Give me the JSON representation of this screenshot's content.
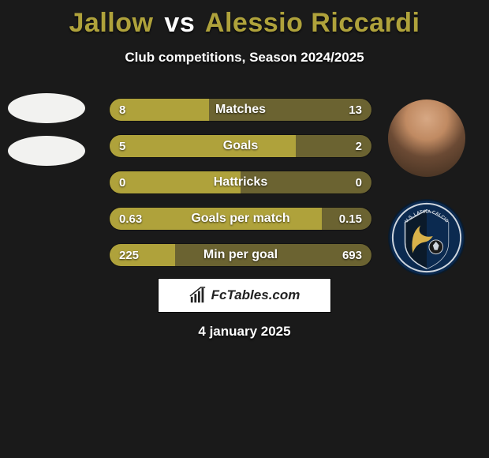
{
  "title": {
    "player1": "Jallow",
    "vs": "vs",
    "player2": "Alessio Riccardi",
    "player1_color": "#afa23b",
    "player2_color": "#afa23b",
    "vs_color": "#ffffff"
  },
  "subtitle": "Club competitions, Season 2024/2025",
  "colors": {
    "left": "#afa23b",
    "right": "#6b6331",
    "background": "#1a1a1a",
    "text": "#ffffff"
  },
  "bars": [
    {
      "label": "Matches",
      "left_val": "8",
      "right_val": "13",
      "left_pct": 38,
      "right_pct": 62
    },
    {
      "label": "Goals",
      "left_val": "5",
      "right_val": "2",
      "left_pct": 71,
      "right_pct": 29
    },
    {
      "label": "Hattricks",
      "left_val": "0",
      "right_val": "0",
      "left_pct": 50,
      "right_pct": 50
    },
    {
      "label": "Goals per match",
      "left_val": "0.63",
      "right_val": "0.15",
      "left_pct": 81,
      "right_pct": 19
    },
    {
      "label": "Min per goal",
      "left_val": "225",
      "right_val": "693",
      "left_pct": 25,
      "right_pct": 75
    }
  ],
  "footer": {
    "brand": "FcTables.com"
  },
  "date": "4 january 2025",
  "right_avatars": {
    "club_badge_text": "U.S. LATINA CALCIO",
    "club_badge_colors": {
      "outer": "#0b2a50",
      "ring": "#cfd6de",
      "inner": "#0b1a2a",
      "accent": "#d9b24a"
    }
  }
}
